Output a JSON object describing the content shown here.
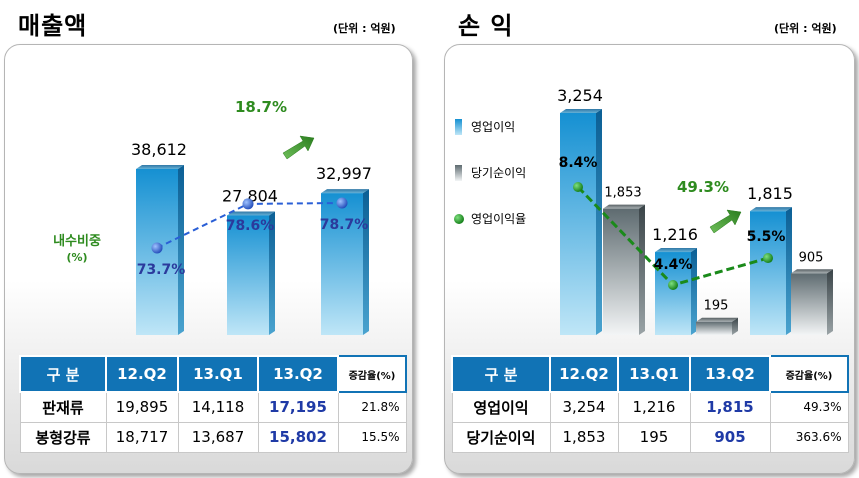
{
  "left": {
    "title": "매출액",
    "unit": "(단위 : 억원)",
    "growth_label": "18.7%",
    "ratio_label": "내수비중\n(%)",
    "table": {
      "header": [
        "구 분",
        "12.Q2",
        "13.Q1",
        "13.Q2",
        "증감율(%)"
      ],
      "rows": [
        [
          "판재류",
          "19,895",
          "14,118",
          "17,195",
          "21.8%"
        ],
        [
          "봉형강류",
          "18,717",
          "13,687",
          "15,802",
          "15.5%"
        ]
      ]
    }
  },
  "right": {
    "title": "손 익",
    "unit": "(단위 : 억원)",
    "growth_label": "49.3%",
    "legend": [
      {
        "label": "영업이익",
        "icon": "blue-bar-icon"
      },
      {
        "label": "당기순이익",
        "icon": "gray-bar-icon"
      },
      {
        "label": "영업이익율",
        "icon": "green-dot-icon"
      }
    ],
    "table": {
      "header": [
        "구 분",
        "12.Q2",
        "13.Q1",
        "13.Q2",
        "증감율(%)"
      ],
      "rows": [
        [
          "영업이익",
          "3,254",
          "1,216",
          "1,815",
          "49.3%"
        ],
        [
          "당기순이익",
          "1,853",
          "195",
          "905",
          "363.6%"
        ]
      ]
    }
  },
  "colors": {
    "bar_blue": "#1b8fcf",
    "bar_gray": "#6f7b80",
    "line_blue": "#2a5fd6",
    "line_green": "#1a8a1a",
    "header_blue": "#1173b5",
    "highlight_blue": "#1f3aa6",
    "growth_green": "#2e8b1f"
  },
  "chart_data": [
    {
      "type": "bar",
      "categories": [
        "12.Q2",
        "13.Q1",
        "13.Q2"
      ],
      "series": [
        {
          "values": [
            38612,
            27804,
            32997
          ],
          "labels": [
            "38,612",
            "27,804",
            "32,997"
          ]
        },
        {
          "name": "내수비중",
          "unit": "%",
          "values": [
            73.7,
            78.6,
            78.7
          ],
          "labels": [
            "73.7%",
            "78.6%",
            "78.7%"
          ]
        }
      ]
    },
    {
      "type": "bar",
      "categories": [
        "12.Q2",
        "13.Q1",
        "13.Q2"
      ],
      "series": [
        {
          "name": "영업이익",
          "values": [
            3254,
            1216,
            1815
          ],
          "labels": [
            "3,254",
            "1,216",
            "1,815"
          ]
        },
        {
          "name": "당기순이익",
          "values": [
            1853,
            195,
            905
          ],
          "labels": [
            "1,853",
            "195",
            "905"
          ]
        },
        {
          "name": "영업이익율",
          "unit": "%",
          "values": [
            8.4,
            4.4,
            5.5
          ],
          "labels": [
            "8.4%",
            "4.4%",
            "5.5%"
          ]
        }
      ]
    }
  ]
}
